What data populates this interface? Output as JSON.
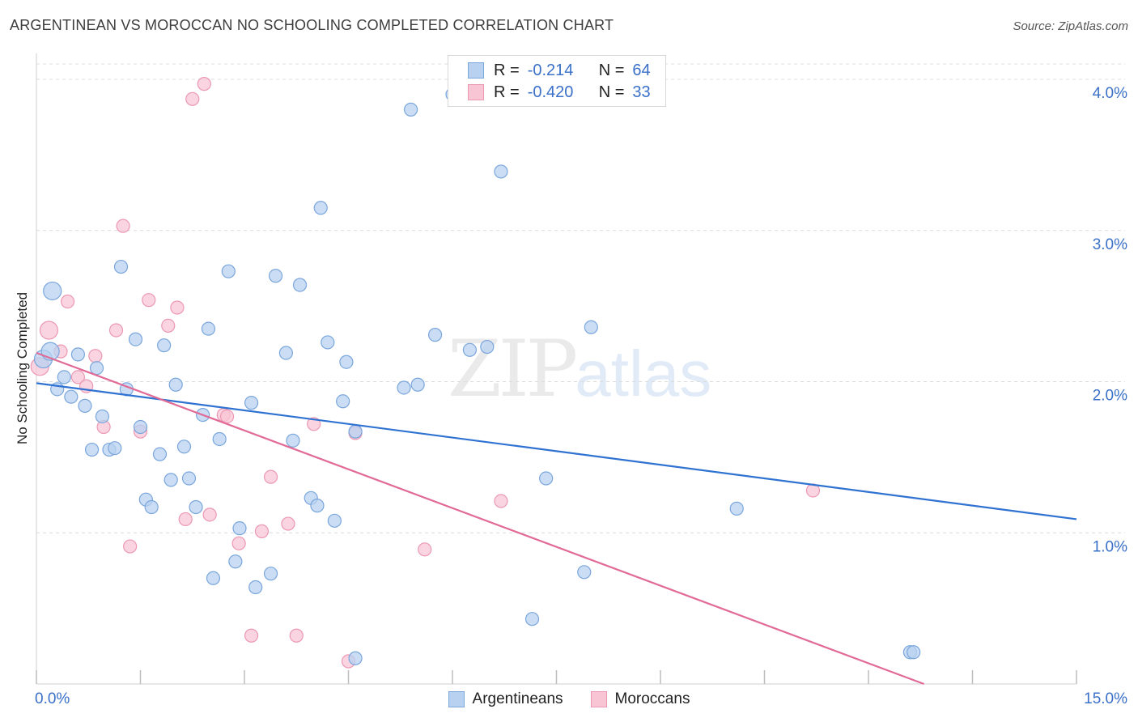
{
  "title": "ARGENTINEAN VS MOROCCAN NO SCHOOLING COMPLETED CORRELATION CHART",
  "source": "Source: ZipAtlas.com",
  "watermark": {
    "zip": "ZIP",
    "atlas": "atlas"
  },
  "legend": {
    "rows": [
      {
        "r_label": "R =",
        "r_value": "-0.214",
        "n_label": "N =",
        "n_value": "64"
      },
      {
        "r_label": "R =",
        "r_value": "-0.420",
        "n_label": "N =",
        "n_value": "33"
      }
    ],
    "series": [
      "Argentineans",
      "Moroccans"
    ]
  },
  "colors": {
    "blue_fill": "#b8d1f0",
    "blue_stroke": "#7aa6dc",
    "blue_line": "#2f72d1",
    "pink_fill": "#f8c5d5",
    "pink_stroke": "#ec98b2",
    "pink_line": "#e26a96",
    "tick_label": "#3a70c8",
    "grid": "#dcdcdc"
  },
  "chart_data": {
    "type": "scatter",
    "title": "ARGENTINEAN VS MOROCCAN NO SCHOOLING COMPLETED CORRELATION CHART",
    "xlabel": "",
    "ylabel": "No Schooling Completed",
    "xlim": [
      0,
      15
    ],
    "ylim": [
      0,
      4.15
    ],
    "x_tick_labels": [
      {
        "value": 0,
        "label": "0.0%"
      },
      {
        "value": 15,
        "label": "15.0%"
      }
    ],
    "y_tick_labels": [
      {
        "value": 1,
        "label": "1.0%"
      },
      {
        "value": 2,
        "label": "2.0%"
      },
      {
        "value": 3,
        "label": "3.0%"
      },
      {
        "value": 4,
        "label": "4.0%"
      }
    ],
    "grid": true,
    "legend_placement": "top-center",
    "series": [
      {
        "name": "Argentineans",
        "color": "#b8d1f0",
        "trend": {
          "x": [
            0,
            15
          ],
          "y": [
            1.99,
            1.09
          ]
        },
        "points": [
          {
            "x": 0.1,
            "y": 2.15,
            "big": true
          },
          {
            "x": 0.2,
            "y": 2.2,
            "big": true
          },
          {
            "x": 0.23,
            "y": 2.6,
            "big": true
          },
          {
            "x": 0.3,
            "y": 1.95
          },
          {
            "x": 0.4,
            "y": 2.03
          },
          {
            "x": 0.5,
            "y": 1.9
          },
          {
            "x": 0.6,
            "y": 2.18
          },
          {
            "x": 0.7,
            "y": 1.84
          },
          {
            "x": 0.8,
            "y": 1.55
          },
          {
            "x": 0.87,
            "y": 2.09
          },
          {
            "x": 0.95,
            "y": 1.77
          },
          {
            "x": 1.05,
            "y": 1.55
          },
          {
            "x": 1.13,
            "y": 1.56
          },
          {
            "x": 1.22,
            "y": 2.76
          },
          {
            "x": 1.3,
            "y": 1.95
          },
          {
            "x": 1.43,
            "y": 2.28
          },
          {
            "x": 1.5,
            "y": 1.7
          },
          {
            "x": 1.58,
            "y": 1.22
          },
          {
            "x": 1.66,
            "y": 1.17
          },
          {
            "x": 1.78,
            "y": 1.52
          },
          {
            "x": 1.84,
            "y": 2.24
          },
          {
            "x": 1.94,
            "y": 1.35
          },
          {
            "x": 2.01,
            "y": 1.98
          },
          {
            "x": 2.13,
            "y": 1.57
          },
          {
            "x": 2.2,
            "y": 1.36
          },
          {
            "x": 2.3,
            "y": 1.17
          },
          {
            "x": 2.4,
            "y": 1.78
          },
          {
            "x": 2.48,
            "y": 2.35
          },
          {
            "x": 2.55,
            "y": 0.7
          },
          {
            "x": 2.64,
            "y": 1.62
          },
          {
            "x": 2.77,
            "y": 2.73
          },
          {
            "x": 2.87,
            "y": 0.81
          },
          {
            "x": 2.93,
            "y": 1.03
          },
          {
            "x": 3.1,
            "y": 1.86
          },
          {
            "x": 3.16,
            "y": 0.64
          },
          {
            "x": 3.38,
            "y": 0.73
          },
          {
            "x": 3.45,
            "y": 2.7
          },
          {
            "x": 3.6,
            "y": 2.19
          },
          {
            "x": 3.7,
            "y": 1.61
          },
          {
            "x": 3.8,
            "y": 2.64
          },
          {
            "x": 3.96,
            "y": 1.23
          },
          {
            "x": 4.05,
            "y": 1.18
          },
          {
            "x": 4.1,
            "y": 3.15
          },
          {
            "x": 4.2,
            "y": 2.26
          },
          {
            "x": 4.3,
            "y": 1.08
          },
          {
            "x": 4.42,
            "y": 1.87
          },
          {
            "x": 4.47,
            "y": 2.13
          },
          {
            "x": 4.6,
            "y": 1.67
          },
          {
            "x": 4.6,
            "y": 0.17
          },
          {
            "x": 5.3,
            "y": 1.96
          },
          {
            "x": 5.4,
            "y": 3.8
          },
          {
            "x": 5.5,
            "y": 1.98
          },
          {
            "x": 5.75,
            "y": 2.31
          },
          {
            "x": 6.0,
            "y": 3.9
          },
          {
            "x": 6.25,
            "y": 2.21
          },
          {
            "x": 6.5,
            "y": 2.23
          },
          {
            "x": 6.7,
            "y": 3.39
          },
          {
            "x": 7.15,
            "y": 0.43
          },
          {
            "x": 7.35,
            "y": 1.36
          },
          {
            "x": 7.9,
            "y": 0.74
          },
          {
            "x": 8.0,
            "y": 2.36
          },
          {
            "x": 10.1,
            "y": 1.16
          },
          {
            "x": 12.6,
            "y": 0.21
          },
          {
            "x": 12.65,
            "y": 0.21
          }
        ]
      },
      {
        "name": "Moroccans",
        "color": "#f8c5d5",
        "trend": {
          "x": [
            0,
            12.8
          ],
          "y": [
            2.19,
            0.0
          ]
        },
        "points": [
          {
            "x": 0.05,
            "y": 2.1,
            "big": true
          },
          {
            "x": 0.18,
            "y": 2.34,
            "big": true
          },
          {
            "x": 0.35,
            "y": 2.2
          },
          {
            "x": 0.45,
            "y": 2.53
          },
          {
            "x": 0.6,
            "y": 2.03
          },
          {
            "x": 0.72,
            "y": 1.97
          },
          {
            "x": 0.85,
            "y": 2.17
          },
          {
            "x": 0.97,
            "y": 1.7
          },
          {
            "x": 1.15,
            "y": 2.34
          },
          {
            "x": 1.25,
            "y": 3.03
          },
          {
            "x": 1.35,
            "y": 0.91
          },
          {
            "x": 1.5,
            "y": 1.67
          },
          {
            "x": 1.62,
            "y": 2.54
          },
          {
            "x": 1.9,
            "y": 2.37
          },
          {
            "x": 2.03,
            "y": 2.49
          },
          {
            "x": 2.15,
            "y": 1.09
          },
          {
            "x": 2.25,
            "y": 3.87
          },
          {
            "x": 2.42,
            "y": 3.97
          },
          {
            "x": 2.5,
            "y": 1.12
          },
          {
            "x": 2.7,
            "y": 1.78
          },
          {
            "x": 2.75,
            "y": 1.77
          },
          {
            "x": 2.92,
            "y": 0.93
          },
          {
            "x": 3.1,
            "y": 0.32
          },
          {
            "x": 3.25,
            "y": 1.01
          },
          {
            "x": 3.38,
            "y": 1.37
          },
          {
            "x": 3.63,
            "y": 1.06
          },
          {
            "x": 3.75,
            "y": 0.32
          },
          {
            "x": 4.0,
            "y": 1.72
          },
          {
            "x": 4.5,
            "y": 0.15
          },
          {
            "x": 4.6,
            "y": 1.66
          },
          {
            "x": 5.6,
            "y": 0.89
          },
          {
            "x": 6.7,
            "y": 1.21
          },
          {
            "x": 11.2,
            "y": 1.28
          }
        ]
      }
    ]
  }
}
